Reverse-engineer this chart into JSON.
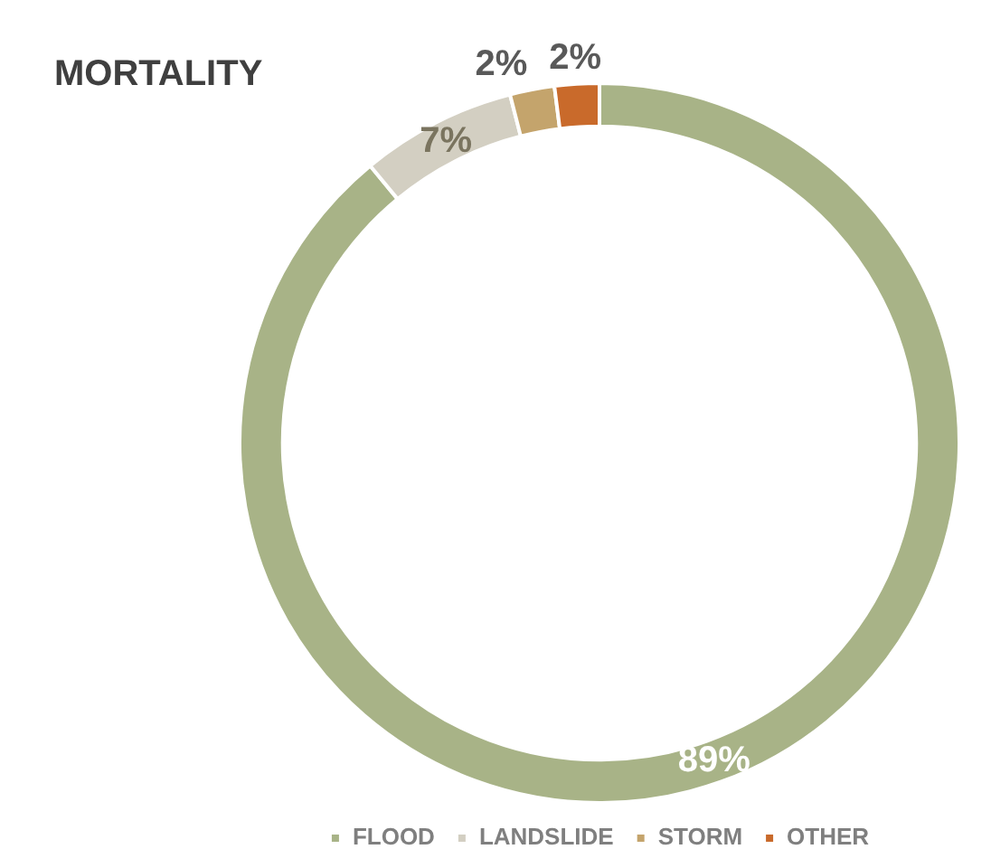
{
  "chart_data": {
    "type": "donut",
    "title": "MORTALITY",
    "categories": [
      "FLOOD",
      "LANDSLIDE",
      "STORM",
      "OTHER"
    ],
    "values": [
      89,
      7,
      2,
      2
    ],
    "colors": [
      "#a8b387",
      "#d3cfc2",
      "#c4a46c",
      "#c96a2b"
    ],
    "value_labels": [
      "89%",
      "7%",
      "2%",
      "2%"
    ],
    "legend": "bottom"
  }
}
